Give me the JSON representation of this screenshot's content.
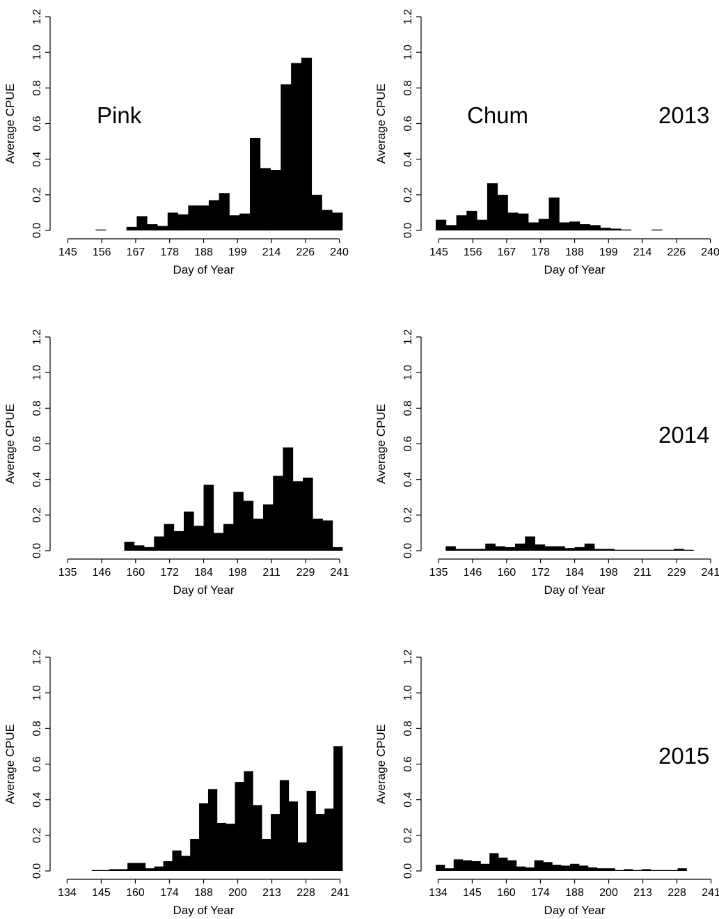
{
  "figure": {
    "species_labels": [
      "Pink",
      "Chum"
    ],
    "year_labels": [
      "2013",
      "2014",
      "2015"
    ]
  },
  "chart_data": [
    {
      "type": "bar",
      "species": "Pink",
      "year": "2013",
      "xlabel": "Day of Year",
      "ylabel": "Average CPUE",
      "ylim": [
        0,
        1.2
      ],
      "yticks": [
        "0.0",
        "0.2",
        "0.4",
        "0.6",
        "0.8",
        "1.0",
        "1.2"
      ],
      "xticks": [
        "145",
        "156",
        "167",
        "178",
        "188",
        "199",
        "214",
        "226",
        "240"
      ],
      "values": [
        0,
        0,
        0,
        0.005,
        0,
        0,
        0.02,
        0.08,
        0.035,
        0.025,
        0.1,
        0.09,
        0.14,
        0.14,
        0.17,
        0.21,
        0.085,
        0.095,
        0.52,
        0.35,
        0.34,
        0.82,
        0.94,
        0.97,
        0.2,
        0.115,
        0.1
      ]
    },
    {
      "type": "bar",
      "species": "Chum",
      "year": "2013",
      "xlabel": "Day of Year",
      "ylabel": "Average CPUE",
      "ylim": [
        0,
        1.2
      ],
      "yticks": [
        "0.0",
        "0.2",
        "0.4",
        "0.6",
        "0.8",
        "1.0",
        "1.2"
      ],
      "xticks": [
        "145",
        "156",
        "167",
        "178",
        "188",
        "199",
        "214",
        "226",
        "240"
      ],
      "values": [
        0.06,
        0.03,
        0.085,
        0.11,
        0.06,
        0.265,
        0.2,
        0.1,
        0.095,
        0.045,
        0.065,
        0.185,
        0.045,
        0.05,
        0.035,
        0.03,
        0.015,
        0.01,
        0.005,
        0,
        0,
        0.005,
        0,
        0,
        0,
        0,
        0
      ]
    },
    {
      "type": "bar",
      "species": "Pink",
      "year": "2014",
      "xlabel": "Day of Year",
      "ylabel": "Average CPUE",
      "ylim": [
        0,
        1.2
      ],
      "yticks": [
        "0.0",
        "0.2",
        "0.4",
        "0.6",
        "0.8",
        "1.0",
        "1.2"
      ],
      "xticks": [
        "135",
        "146",
        "160",
        "172",
        "184",
        "198",
        "211",
        "229",
        "241"
      ],
      "values": [
        0,
        0,
        0,
        0,
        0,
        0,
        0.05,
        0.03,
        0.02,
        0.08,
        0.15,
        0.11,
        0.22,
        0.14,
        0.37,
        0.1,
        0.15,
        0.33,
        0.28,
        0.18,
        0.26,
        0.42,
        0.58,
        0.39,
        0.41,
        0.18,
        0.17,
        0.02
      ]
    },
    {
      "type": "bar",
      "species": "Chum",
      "year": "2014",
      "xlabel": "Day of Year",
      "ylabel": "Average CPUE",
      "ylim": [
        0,
        1.2
      ],
      "yticks": [
        "0.0",
        "0.2",
        "0.4",
        "0.6",
        "0.8",
        "1.0",
        "1.2"
      ],
      "xticks": [
        "135",
        "146",
        "160",
        "172",
        "184",
        "198",
        "211",
        "229",
        "241"
      ],
      "values": [
        0,
        0.025,
        0.01,
        0.01,
        0.01,
        0.04,
        0.025,
        0.02,
        0.04,
        0.08,
        0.035,
        0.025,
        0.025,
        0.015,
        0.02,
        0.04,
        0.01,
        0.01,
        0.005,
        0.005,
        0.005,
        0.005,
        0.005,
        0.005,
        0.01,
        0.005,
        0,
        0
      ]
    },
    {
      "type": "bar",
      "species": "Pink",
      "year": "2015",
      "xlabel": "Day of Year",
      "ylabel": "Average CPUE",
      "ylim": [
        0,
        1.2
      ],
      "yticks": [
        "0.0",
        "0.2",
        "0.4",
        "0.6",
        "0.8",
        "1.0",
        "1.2"
      ],
      "xticks": [
        "134",
        "145",
        "160",
        "174",
        "188",
        "200",
        "213",
        "228",
        "241"
      ],
      "values": [
        0,
        0,
        0,
        0.005,
        0.005,
        0.01,
        0.01,
        0.045,
        0.045,
        0.015,
        0.025,
        0.055,
        0.115,
        0.085,
        0.18,
        0.38,
        0.46,
        0.27,
        0.265,
        0.5,
        0.56,
        0.37,
        0.18,
        0.32,
        0.51,
        0.39,
        0.16,
        0.45,
        0.32,
        0.35,
        0.7
      ]
    },
    {
      "type": "bar",
      "species": "Chum",
      "year": "2015",
      "xlabel": "Day of Year",
      "ylabel": "Average CPUE",
      "ylim": [
        0,
        1.2
      ],
      "yticks": [
        "0.0",
        "0.2",
        "0.4",
        "0.6",
        "0.8",
        "1.0",
        "1.2"
      ],
      "xticks": [
        "134",
        "145",
        "160",
        "174",
        "188",
        "200",
        "213",
        "228",
        "241"
      ],
      "values": [
        0.035,
        0.015,
        0.065,
        0.06,
        0.055,
        0.04,
        0.1,
        0.075,
        0.06,
        0.025,
        0.02,
        0.06,
        0.05,
        0.035,
        0.03,
        0.04,
        0.03,
        0.02,
        0.015,
        0.015,
        0.005,
        0.01,
        0.005,
        0.01,
        0.005,
        0.005,
        0.005,
        0.015,
        0,
        0,
        0
      ]
    }
  ]
}
